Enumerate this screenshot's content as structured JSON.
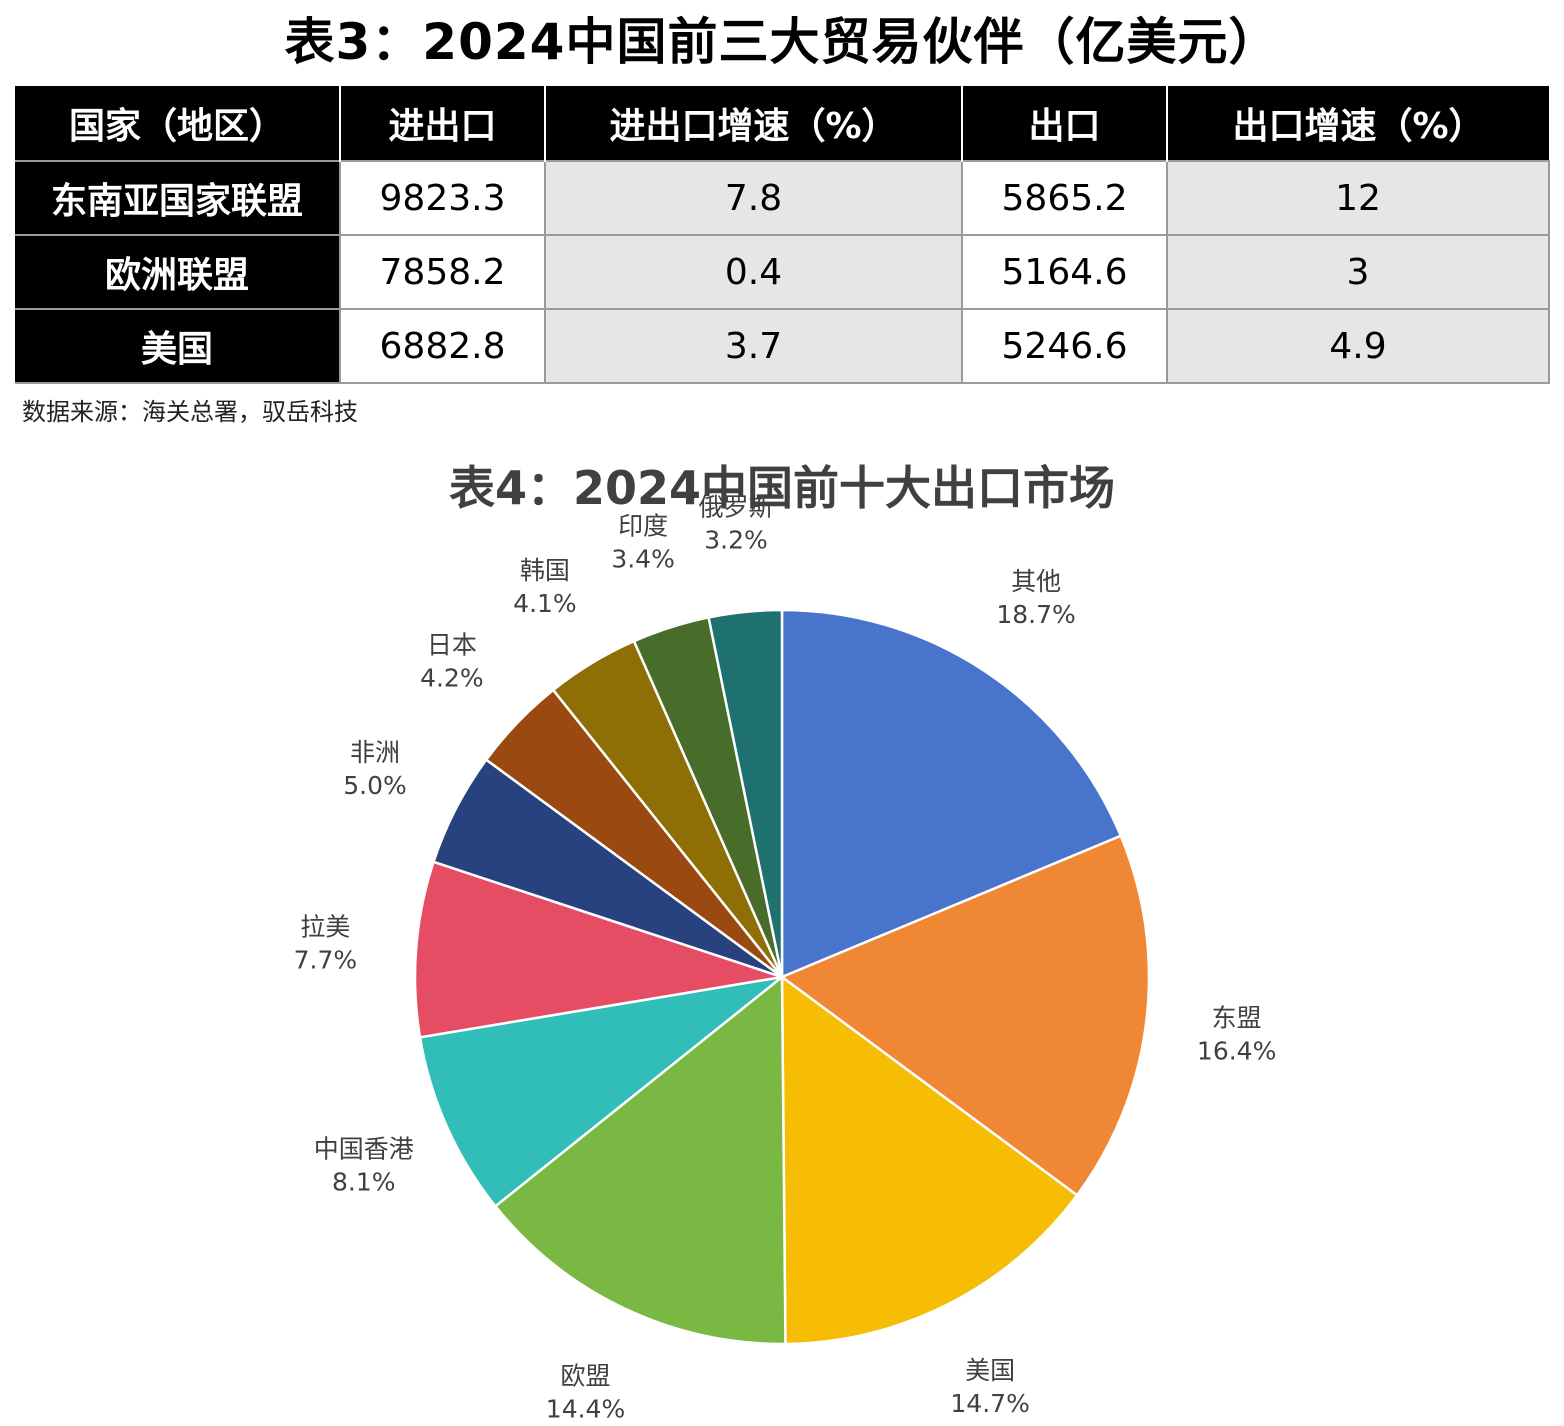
{
  "table3": {
    "title": "表3：2024中国前三大贸易伙伴（亿美元）",
    "headers": [
      "国家（地区）",
      "进出口",
      "进出口增速（%）",
      "出口",
      "出口增速（%）"
    ],
    "rows": [
      {
        "country": "东南亚国家联盟",
        "trade": "9823.3",
        "trade_growth": "7.8",
        "export": "5865.2",
        "export_growth": "12"
      },
      {
        "country": "欧洲联盟",
        "trade": "7858.2",
        "trade_growth": "0.4",
        "export": "5164.6",
        "export_growth": "3"
      },
      {
        "country": "美国",
        "trade": "6882.8",
        "trade_growth": "3.7",
        "export": "5246.6",
        "export_growth": "4.9"
      }
    ],
    "source": "数据来源：海关总署，驭岳科技"
  },
  "chart_data": {
    "type": "pie",
    "title": "表4：2024中国前十大出口市场",
    "slices": [
      {
        "name": "其他",
        "value": 18.7,
        "label": "18.7%",
        "color": "#4874CB"
      },
      {
        "name": "东盟",
        "value": 16.4,
        "label": "16.4%",
        "color": "#F08734"
      },
      {
        "name": "美国",
        "value": 14.7,
        "label": "14.7%",
        "color": "#F7BC04"
      },
      {
        "name": "欧盟",
        "value": 14.4,
        "label": "14.4%",
        "color": "#79B943"
      },
      {
        "name": "中国香港",
        "value": 8.1,
        "label": "8.1%",
        "color": "#31BDB8"
      },
      {
        "name": "拉美",
        "value": 7.7,
        "label": "7.7%",
        "color": "#E54D64"
      },
      {
        "name": "非洲",
        "value": 5.0,
        "label": "5.0%",
        "color": "#28427F"
      },
      {
        "name": "日本",
        "value": 4.2,
        "label": "4.2%",
        "color": "#9A4A10"
      },
      {
        "name": "韩国",
        "value": 4.1,
        "label": "4.1%",
        "color": "#8E6F06"
      },
      {
        "name": "印度",
        "value": 3.4,
        "label": "3.4%",
        "color": "#486D2A"
      },
      {
        "name": "俄罗斯",
        "value": 3.2,
        "label": "3.2%",
        "color": "#1E716E"
      }
    ],
    "start_angle_deg": 0,
    "direction": "clockwise"
  }
}
